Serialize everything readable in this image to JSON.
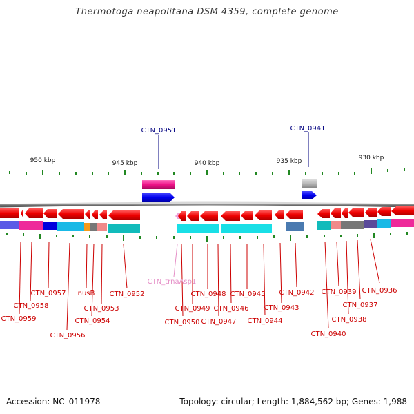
{
  "title": "Thermotoga neapolitana DSM 4359, complete genome",
  "footer": {
    "accession": "Accession: NC_011978",
    "summary": "Topology: circular; Length: 1,884,562 bp; Genes: 1,988"
  },
  "colors": {
    "label_line": "#cc0000",
    "trna_label": "#e58fc7",
    "top_label": "#00007f",
    "tick": "#228822",
    "backbone": "#8a8a8a"
  },
  "scale": {
    "ticks": [
      "950 kbp",
      "945 kbp",
      "940 kbp",
      "935 kbp",
      "930 kbp"
    ]
  },
  "top_genes": [
    "CTN_0951",
    "CTN_0941"
  ],
  "bottom_genes": [
    "CTN_0959",
    "CTN_0958",
    "CTN_0957",
    "CTN_0956",
    "nusB",
    "CTN_0954",
    "CTN_0953",
    "CTN_0952",
    "CTN_trnaAsp1",
    "CTN_0950",
    "CTN_0949",
    "CTN_0948",
    "CTN_0947",
    "CTN_0946",
    "CTN_0945",
    "CTN_0944",
    "CTN_0943",
    "CTN_0942",
    "CTN_0940",
    "CTN_0939",
    "CTN_0938",
    "CTN_0937",
    "CTN_0936"
  ]
}
